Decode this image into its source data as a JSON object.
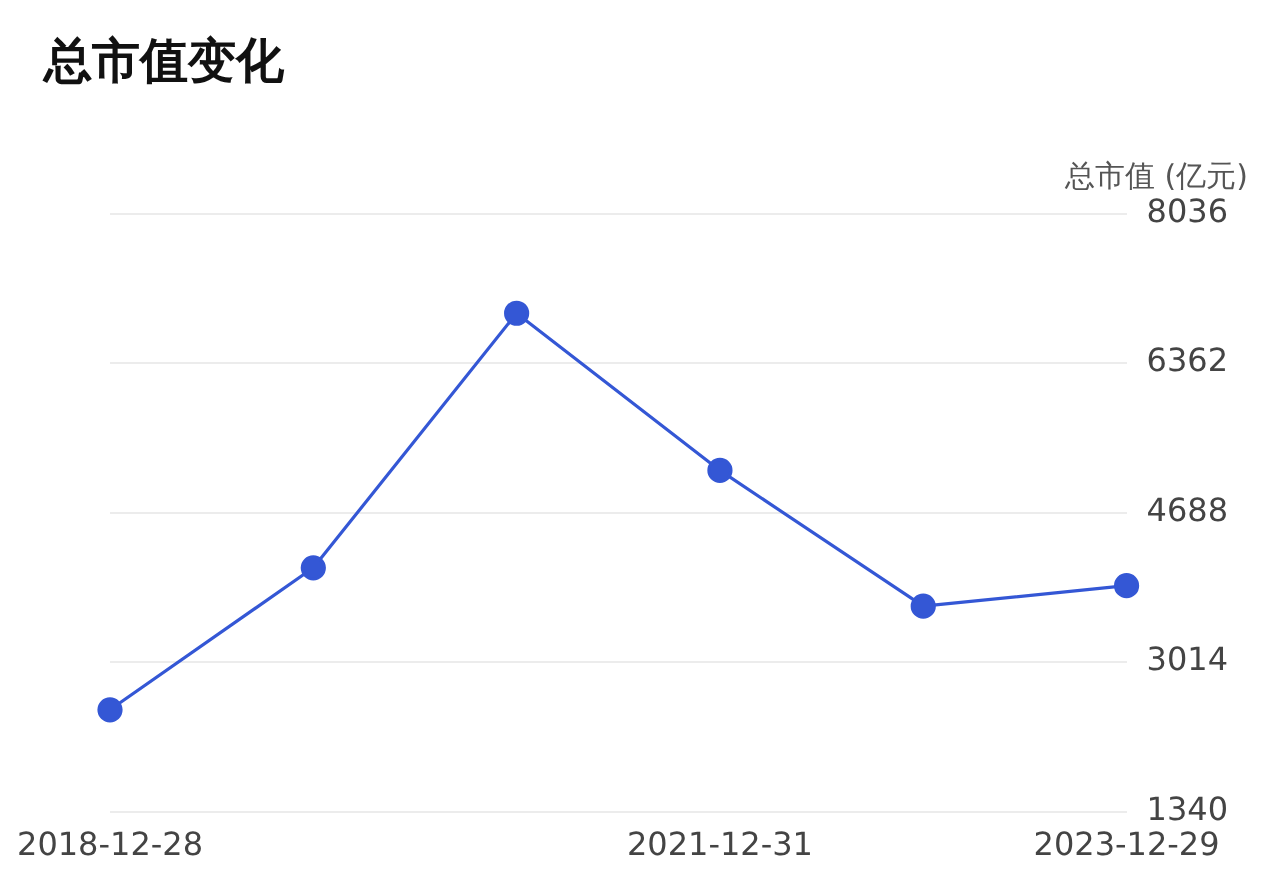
{
  "chart_data": {
    "type": "line",
    "title": "总市值变化",
    "ylabel": "总市值 (亿元)",
    "categories": [
      "2018-12-28",
      null,
      null,
      "2021-12-31",
      null,
      "2023-12-29"
    ],
    "series": [
      {
        "color": "#3457d5",
        "values": [
          2480,
          4070,
          6920,
          5160,
          3640,
          3870
        ]
      }
    ],
    "ylim": [
      1340,
      8036
    ],
    "yticks": [
      1340,
      3014,
      4688,
      6362,
      8036
    ],
    "grid": "y",
    "marker": "circle",
    "line_style": "solid",
    "legend": false
  }
}
